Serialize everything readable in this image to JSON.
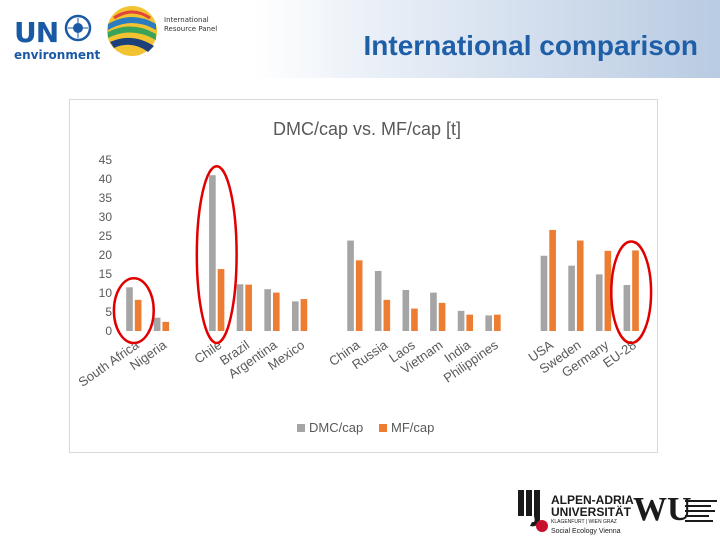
{
  "header": {
    "un_logo_text": "UN",
    "un_logo_subtext": "environment",
    "irp_logo_text": "International Resource Panel",
    "slide_title": "International comparison"
  },
  "chart_data": {
    "type": "bar",
    "title": "DMC/cap vs. MF/cap [t]",
    "xlabel": "",
    "ylabel": "",
    "ylim": [
      0,
      45
    ],
    "yticks": [
      0,
      5,
      10,
      15,
      20,
      25,
      30,
      35,
      40,
      45
    ],
    "grid": false,
    "legend_position": "bottom",
    "categories": [
      "South Africa",
      "Nigeria",
      "",
      "Chile",
      "Brazil",
      "Argentina",
      "Mexico",
      "",
      "China",
      "Russia",
      "Laos",
      "Vietnam",
      "India",
      "Philippines",
      "",
      "USA",
      "Sweden",
      "Germany",
      "EU-28"
    ],
    "series": [
      {
        "name": "DMC/cap",
        "color": "#a5a5a5",
        "values": [
          11.5,
          3.5,
          null,
          41,
          12.3,
          11,
          7.8,
          null,
          23.8,
          15.8,
          10.8,
          10.1,
          5.3,
          4.1,
          null,
          19.8,
          17.2,
          14.9,
          12.1
        ]
      },
      {
        "name": "MF/cap",
        "color": "#ed7d31",
        "values": [
          8.2,
          2.4,
          null,
          16.3,
          12.2,
          10.1,
          8.4,
          null,
          18.6,
          8.2,
          5.9,
          7.4,
          4.3,
          4.3,
          null,
          26.6,
          23.8,
          21.1,
          21.2
        ]
      }
    ],
    "highlight_circles": [
      "South Africa",
      "Chile",
      "EU-28"
    ],
    "highlight_color": "#e00000"
  },
  "footer": {
    "aau_line1": "ALPEN-ADRIA",
    "aau_line2": "UNIVERSITÄT",
    "aau_line3": "KLAGENFURT | WIEN GRAZ",
    "aau_line4": "Social Ecology Vienna",
    "wu_text": "WU"
  }
}
